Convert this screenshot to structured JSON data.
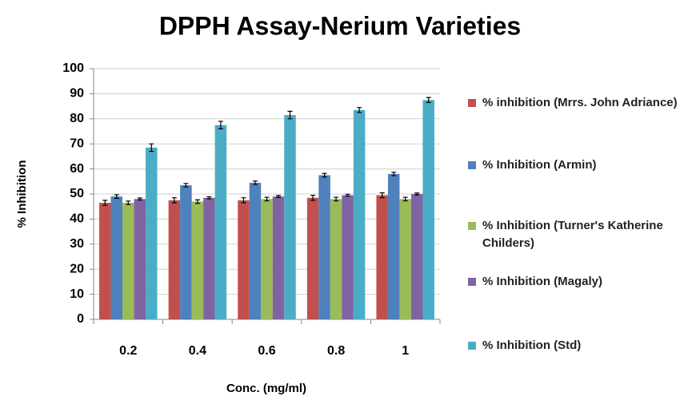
{
  "chart_data": {
    "type": "bar",
    "title": "DPPH Assay-Nerium Varieties",
    "xlabel": "Conc. (mg/ml)",
    "ylabel": "% Inhibition",
    "categories": [
      "0.2",
      "0.4",
      "0.6",
      "0.8",
      "1"
    ],
    "series": [
      {
        "name": "% inhibition (Mrrs. John Adriance)",
        "color": "#c0504d",
        "values": [
          46.5,
          47.5,
          47.5,
          48.5,
          49.5
        ],
        "errors": [
          1,
          1,
          1,
          1,
          1
        ]
      },
      {
        "name": "% Inhibition (Armin)",
        "color": "#4f81bd",
        "values": [
          49,
          53.5,
          54.5,
          57.5,
          58
        ],
        "errors": [
          0.7,
          0.7,
          0.7,
          0.7,
          0.7
        ]
      },
      {
        "name": "% Inhibition (Turner's Katherine Childers)",
        "color": "#9bbb59",
        "values": [
          46.5,
          47,
          48,
          48,
          48
        ],
        "errors": [
          0.7,
          0.7,
          0.7,
          0.7,
          0.7
        ]
      },
      {
        "name": "% Inhibition (Magaly)",
        "color": "#8064a2",
        "values": [
          48,
          48.5,
          49,
          49.5,
          50
        ],
        "errors": [
          0.4,
          0.4,
          0.4,
          0.4,
          0.4
        ]
      },
      {
        "name": "% Inhibition (Std)",
        "color": "#4bacc6",
        "values": [
          68.5,
          77.5,
          81.5,
          83.5,
          87.5
        ],
        "errors": [
          1.5,
          1.5,
          1.5,
          1,
          1
        ]
      }
    ],
    "ylim": [
      0,
      100
    ],
    "yticks": [
      0,
      10,
      20,
      30,
      40,
      50,
      60,
      70,
      80,
      90,
      100
    ],
    "grid": true,
    "legend": "right"
  }
}
